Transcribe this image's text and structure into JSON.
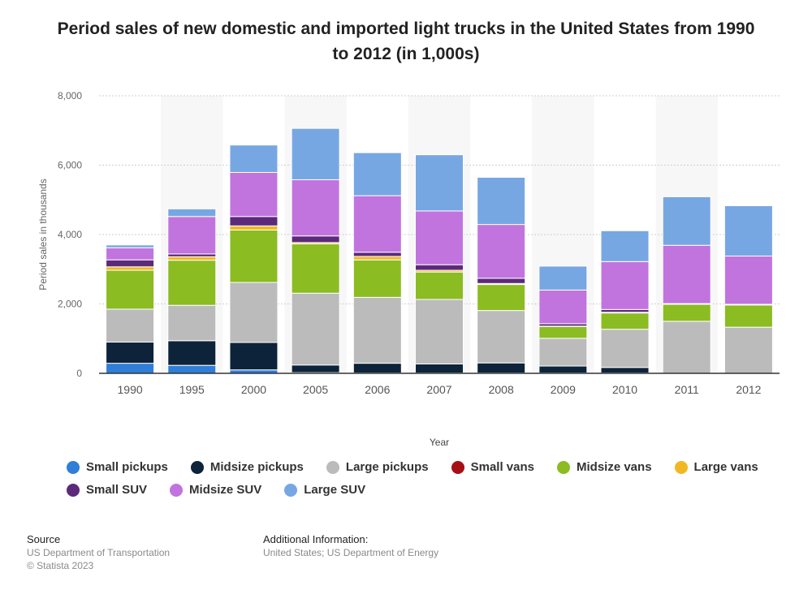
{
  "title_line1": "Period sales of new domestic and imported light trucks in the United States from 1990",
  "title_line2": "to 2012 (in 1,000s)",
  "chart_data": {
    "type": "bar",
    "stacked": true,
    "categories": [
      "1990",
      "1995",
      "2000",
      "2005",
      "2006",
      "2007",
      "2008",
      "2009",
      "2010",
      "2011",
      "2012"
    ],
    "xlabel": "Year",
    "ylabel": "Period sales in thousands",
    "ylim": [
      0,
      8000
    ],
    "yticks": [
      0,
      2000,
      4000,
      6000,
      8000
    ],
    "ytick_labels": [
      "0",
      "2,000",
      "4,000",
      "6,000",
      "8,000"
    ],
    "grid": true,
    "legend_position": "bottom",
    "series": [
      {
        "name": "Small pickups",
        "color": "#2f7ed8",
        "values": [
          290,
          230,
          100,
          20,
          10,
          10,
          10,
          10,
          10,
          0,
          0
        ]
      },
      {
        "name": "Midsize pickups",
        "color": "#0d233a",
        "values": [
          610,
          710,
          790,
          220,
          280,
          260,
          290,
          200,
          160,
          0,
          0
        ]
      },
      {
        "name": "Large pickups",
        "color": "#bbbbbb",
        "values": [
          950,
          1020,
          1730,
          2070,
          1900,
          1860,
          1510,
          800,
          1100,
          1500,
          1330
        ]
      },
      {
        "name": "Small vans",
        "color": "#a50f15",
        "values": [
          0,
          0,
          0,
          0,
          0,
          0,
          0,
          0,
          0,
          0,
          0
        ]
      },
      {
        "name": "Midsize vans",
        "color": "#8bbc21",
        "values": [
          1120,
          1300,
          1510,
          1420,
          1080,
          790,
          750,
          340,
          470,
          490,
          640
        ]
      },
      {
        "name": "Large vans",
        "color": "#f2b823",
        "values": [
          100,
          100,
          120,
          40,
          100,
          50,
          30,
          10,
          20,
          20,
          20
        ]
      },
      {
        "name": "Small SUV",
        "color": "#5b2a7a",
        "values": [
          200,
          80,
          270,
          190,
          120,
          160,
          150,
          70,
          80,
          0,
          0
        ]
      },
      {
        "name": "Midsize SUV",
        "color": "#c174de",
        "values": [
          350,
          1080,
          1270,
          1620,
          1630,
          1550,
          1550,
          970,
          1380,
          1680,
          1390
        ]
      },
      {
        "name": "Large SUV",
        "color": "#77a7e3",
        "values": [
          80,
          220,
          790,
          1480,
          1240,
          1620,
          1360,
          690,
          890,
          1400,
          1450
        ]
      }
    ]
  },
  "footer": {
    "source_heading": "Source",
    "source_line1": "US Department of Transportation",
    "source_line2": "© Statista 2023",
    "info_heading": "Additional Information:",
    "info_line1": "United States; US Department of Energy"
  }
}
